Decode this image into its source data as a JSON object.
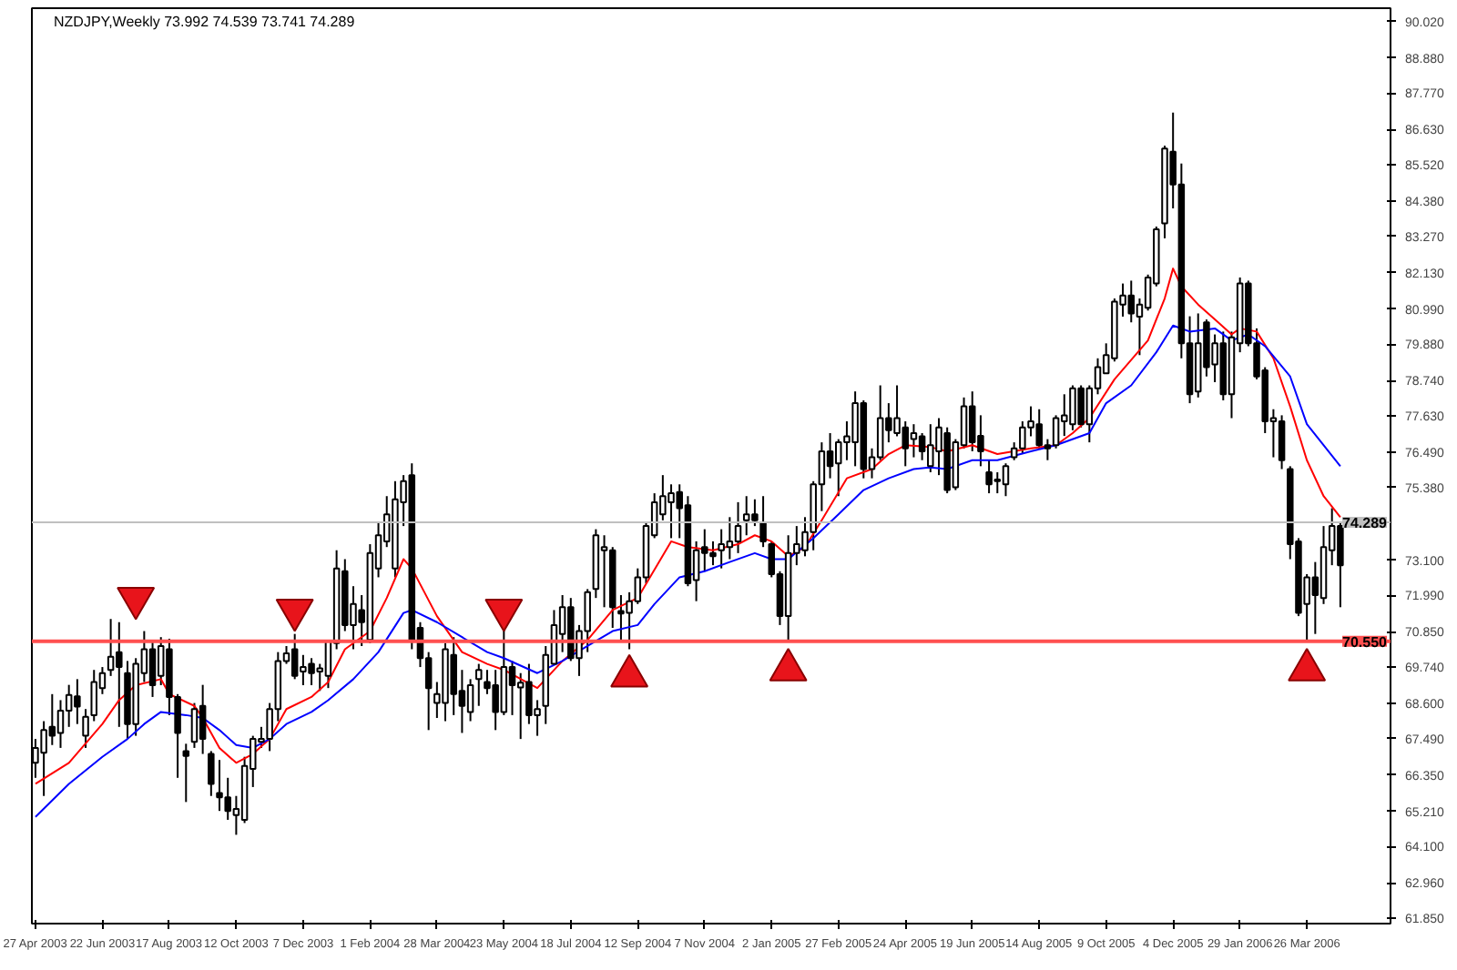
{
  "chart_data": {
    "type": "candlestick",
    "title": "NZDJPY,Weekly  73.992 74.539 73.741 74.289",
    "x": [
      "2003-04-27",
      "2003-05-04",
      "2003-05-11",
      "2003-05-18",
      "2003-05-25",
      "2003-06-01",
      "2003-06-08",
      "2003-06-15",
      "2003-06-22",
      "2003-06-29",
      "2003-07-06",
      "2003-07-13",
      "2003-07-20",
      "2003-07-27",
      "2003-08-03",
      "2003-08-10",
      "2003-08-17",
      "2003-08-24",
      "2003-08-31",
      "2003-09-07",
      "2003-09-14",
      "2003-09-21",
      "2003-09-28",
      "2003-10-05",
      "2003-10-12",
      "2003-10-19",
      "2003-10-26",
      "2003-11-02",
      "2003-11-09",
      "2003-11-16",
      "2003-11-23",
      "2003-11-30",
      "2003-12-07",
      "2003-12-14",
      "2003-12-21",
      "2003-12-28",
      "2004-01-04",
      "2004-01-11",
      "2004-01-18",
      "2004-01-25",
      "2004-02-01",
      "2004-02-08",
      "2004-02-15",
      "2004-02-22",
      "2004-02-29",
      "2004-03-07",
      "2004-03-14",
      "2004-03-21",
      "2004-03-28",
      "2004-04-04",
      "2004-04-11",
      "2004-04-18",
      "2004-04-25",
      "2004-05-02",
      "2004-05-09",
      "2004-05-16",
      "2004-05-23",
      "2004-05-30",
      "2004-06-06",
      "2004-06-13",
      "2004-06-20",
      "2004-06-27",
      "2004-07-04",
      "2004-07-11",
      "2004-07-18",
      "2004-07-25",
      "2004-08-01",
      "2004-08-08",
      "2004-08-15",
      "2004-08-22",
      "2004-08-29",
      "2004-09-05",
      "2004-09-12",
      "2004-09-19",
      "2004-09-26",
      "2004-10-03",
      "2004-10-10",
      "2004-10-17",
      "2004-10-24",
      "2004-10-31",
      "2004-11-07",
      "2004-11-14",
      "2004-11-21",
      "2004-11-28",
      "2004-12-05",
      "2004-12-12",
      "2004-12-19",
      "2004-12-26",
      "2005-01-02",
      "2005-01-09",
      "2005-01-16",
      "2005-01-23",
      "2005-01-30",
      "2005-02-06",
      "2005-02-13",
      "2005-02-20",
      "2005-02-27",
      "2005-03-06",
      "2005-03-13",
      "2005-03-20",
      "2005-03-27",
      "2005-04-03",
      "2005-04-10",
      "2005-04-17",
      "2005-04-24",
      "2005-05-01",
      "2005-05-08",
      "2005-05-15",
      "2005-05-22",
      "2005-05-29",
      "2005-06-05",
      "2005-06-12",
      "2005-06-19",
      "2005-06-26",
      "2005-07-03",
      "2005-07-10",
      "2005-07-17",
      "2005-07-24",
      "2005-07-31",
      "2005-08-07",
      "2005-08-14",
      "2005-08-21",
      "2005-08-28",
      "2005-09-04",
      "2005-09-11",
      "2005-09-18",
      "2005-09-25",
      "2005-10-02",
      "2005-10-09",
      "2005-10-16",
      "2005-10-23",
      "2005-10-30",
      "2005-11-06",
      "2005-11-13",
      "2005-11-20",
      "2005-11-27",
      "2005-12-04",
      "2005-12-11",
      "2005-12-18",
      "2005-12-25",
      "2006-01-01",
      "2006-01-08",
      "2006-01-15",
      "2006-01-22",
      "2006-01-29",
      "2006-02-05",
      "2006-02-12",
      "2006-02-19",
      "2006-02-26",
      "2006-03-05",
      "2006-03-12",
      "2006-03-19",
      "2006-03-26",
      "2006-04-02",
      "2006-04-09",
      "2006-04-16",
      "2006-04-23"
    ],
    "ohlc": [
      [
        66.73,
        67.48,
        66.26,
        67.2
      ],
      [
        67.05,
        68.04,
        65.69,
        67.76
      ],
      [
        67.86,
        68.89,
        67.29,
        67.58
      ],
      [
        67.67,
        68.7,
        67.2,
        68.37
      ],
      [
        68.37,
        69.18,
        67.86,
        68.86
      ],
      [
        68.82,
        69.36,
        67.95,
        68.5
      ],
      [
        67.58,
        68.42,
        67.2,
        68.18
      ],
      [
        68.23,
        69.65,
        68.04,
        69.27
      ],
      [
        69.08,
        69.74,
        68.89,
        69.55
      ],
      [
        69.65,
        71.25,
        69.46,
        70.06
      ],
      [
        70.21,
        71.15,
        67.86,
        69.74
      ],
      [
        69.55,
        69.93,
        67.48,
        67.95
      ],
      [
        67.95,
        70.02,
        67.58,
        69.84
      ],
      [
        69.55,
        70.87,
        69.27,
        70.3
      ],
      [
        70.3,
        70.59,
        68.8,
        69.17
      ],
      [
        69.46,
        70.68,
        69.17,
        70.4
      ],
      [
        70.3,
        70.63,
        68.23,
        68.8
      ],
      [
        68.8,
        68.89,
        66.26,
        67.67
      ],
      [
        67.1,
        67.33,
        65.5,
        66.95
      ],
      [
        67.39,
        68.61,
        67.2,
        68.42
      ],
      [
        68.52,
        69.18,
        67.01,
        67.48
      ],
      [
        67.01,
        67.1,
        65.69,
        66.07
      ],
      [
        65.78,
        66.82,
        65.22,
        65.65
      ],
      [
        65.65,
        66.26,
        64.94,
        65.22
      ],
      [
        65.09,
        65.69,
        64.47,
        65.28
      ],
      [
        64.94,
        66.92,
        64.84,
        66.63
      ],
      [
        66.54,
        67.58,
        65.97,
        67.48
      ],
      [
        67.39,
        67.86,
        67.2,
        67.48
      ],
      [
        67.48,
        68.61,
        67.1,
        68.42
      ],
      [
        68.42,
        70.21,
        68.04,
        69.93
      ],
      [
        69.93,
        70.4,
        69.84,
        70.17
      ],
      [
        70.3,
        70.78,
        69.36,
        69.46
      ],
      [
        69.6,
        70.12,
        69.17,
        69.74
      ],
      [
        69.84,
        70.02,
        69.17,
        69.55
      ],
      [
        69.6,
        69.84,
        68.99,
        69.7
      ],
      [
        69.46,
        70.59,
        69.08,
        70.55
      ],
      [
        70.49,
        73.41,
        70.3,
        72.84
      ],
      [
        72.75,
        73.13,
        70.87,
        71.06
      ],
      [
        71.06,
        72.28,
        70.3,
        71.72
      ],
      [
        71.53,
        72.0,
        70.4,
        71.15
      ],
      [
        70.59,
        73.6,
        70.49,
        73.32
      ],
      [
        72.84,
        74.26,
        72.56,
        73.88
      ],
      [
        73.69,
        75.11,
        73.51,
        74.54
      ],
      [
        72.84,
        75.58,
        72.56,
        75.01
      ],
      [
        74.92,
        75.77,
        74.17,
        75.58
      ],
      [
        75.77,
        76.14,
        70.3,
        70.59
      ],
      [
        70.97,
        71.15,
        69.74,
        70.02
      ],
      [
        70.02,
        70.21,
        67.76,
        69.08
      ],
      [
        68.61,
        69.27,
        68.14,
        68.89
      ],
      [
        68.61,
        70.49,
        68.04,
        70.3
      ],
      [
        70.12,
        70.68,
        68.23,
        68.89
      ],
      [
        68.99,
        69.65,
        67.67,
        68.52
      ],
      [
        68.33,
        69.36,
        68.04,
        69.17
      ],
      [
        69.36,
        69.84,
        68.52,
        69.65
      ],
      [
        69.27,
        69.65,
        68.89,
        69.08
      ],
      [
        69.17,
        69.65,
        67.76,
        68.33
      ],
      [
        68.33,
        70.97,
        68.23,
        69.74
      ],
      [
        69.74,
        69.93,
        68.23,
        69.17
      ],
      [
        69.1,
        69.55,
        67.48,
        69.25
      ],
      [
        69.27,
        69.84,
        67.95,
        68.23
      ],
      [
        68.23,
        68.7,
        67.58,
        68.42
      ],
      [
        68.52,
        70.4,
        67.95,
        70.12
      ],
      [
        69.84,
        71.53,
        69.84,
        71.06
      ],
      [
        70.78,
        72.0,
        70.21,
        71.62
      ],
      [
        71.62,
        71.91,
        69.93,
        70.02
      ],
      [
        70.02,
        71.06,
        69.46,
        70.87
      ],
      [
        70.87,
        72.19,
        70.21,
        72.09
      ],
      [
        72.19,
        74.07,
        71.91,
        73.88
      ],
      [
        73.41,
        73.88,
        71.62,
        73.51
      ],
      [
        73.41,
        73.51,
        70.97,
        71.62
      ],
      [
        71.5,
        72.0,
        70.59,
        71.42
      ],
      [
        71.44,
        72.09,
        70.3,
        71.81
      ],
      [
        71.81,
        72.84,
        71.72,
        72.56
      ],
      [
        72.56,
        74.26,
        72.37,
        74.17
      ],
      [
        73.88,
        75.2,
        73.79,
        74.92
      ],
      [
        74.54,
        75.77,
        74.35,
        75.11
      ],
      [
        74.92,
        75.48,
        73.79,
        75.2
      ],
      [
        75.24,
        75.48,
        73.79,
        74.73
      ],
      [
        74.82,
        75.11,
        72.28,
        72.37
      ],
      [
        72.47,
        73.69,
        71.81,
        73.41
      ],
      [
        73.51,
        74.07,
        72.75,
        73.32
      ],
      [
        73.32,
        73.69,
        72.94,
        73.22
      ],
      [
        73.41,
        74.07,
        72.84,
        73.6
      ],
      [
        73.51,
        74.45,
        73.13,
        73.69
      ],
      [
        73.69,
        74.92,
        73.32,
        74.17
      ],
      [
        74.35,
        75.11,
        73.88,
        74.54
      ],
      [
        74.54,
        75.01,
        74.17,
        74.35
      ],
      [
        74.26,
        75.11,
        73.51,
        73.69
      ],
      [
        73.6,
        73.69,
        72.56,
        72.66
      ],
      [
        72.66,
        72.75,
        71.06,
        71.34
      ],
      [
        71.34,
        73.88,
        70.59,
        73.32
      ],
      [
        73.32,
        74.17,
        72.94,
        73.6
      ],
      [
        73.41,
        74.45,
        73.22,
        73.98
      ],
      [
        73.98,
        75.58,
        73.41,
        75.48
      ],
      [
        75.48,
        76.8,
        74.64,
        76.52
      ],
      [
        76.52,
        77.09,
        75.67,
        76.05
      ],
      [
        76.14,
        76.9,
        75.11,
        76.8
      ],
      [
        76.8,
        77.46,
        76.24,
        76.99
      ],
      [
        76.8,
        78.4,
        76.05,
        78.03
      ],
      [
        78.03,
        78.12,
        75.67,
        75.96
      ],
      [
        75.96,
        76.61,
        75.67,
        76.33
      ],
      [
        76.33,
        78.59,
        76.24,
        77.56
      ],
      [
        77.56,
        78.03,
        76.8,
        77.18
      ],
      [
        77.09,
        78.59,
        76.99,
        77.56
      ],
      [
        77.27,
        77.46,
        76.05,
        76.61
      ],
      [
        76.9,
        77.37,
        76.33,
        77.09
      ],
      [
        76.99,
        77.09,
        76.24,
        76.52
      ],
      [
        76.05,
        77.37,
        75.86,
        76.71
      ],
      [
        76.52,
        77.56,
        75.77,
        77.27
      ],
      [
        77.09,
        77.27,
        75.2,
        75.3
      ],
      [
        75.39,
        76.9,
        75.3,
        76.8
      ],
      [
        76.71,
        78.21,
        76.61,
        77.93
      ],
      [
        77.93,
        78.4,
        76.52,
        76.8
      ],
      [
        77.0,
        77.65,
        76.05,
        76.52
      ],
      [
        75.86,
        76.24,
        75.2,
        75.48
      ],
      [
        75.63,
        75.86,
        75.2,
        75.58
      ],
      [
        75.48,
        76.14,
        75.11,
        76.05
      ],
      [
        76.33,
        76.8,
        76.24,
        76.61
      ],
      [
        76.61,
        77.46,
        76.43,
        77.27
      ],
      [
        77.27,
        77.93,
        76.99,
        77.46
      ],
      [
        77.37,
        77.84,
        76.61,
        76.71
      ],
      [
        76.71,
        76.9,
        76.24,
        76.61
      ],
      [
        76.71,
        77.65,
        76.61,
        77.56
      ],
      [
        77.46,
        78.31,
        77.0,
        77.65
      ],
      [
        77.37,
        78.59,
        77.18,
        78.5
      ],
      [
        78.5,
        78.59,
        77.27,
        77.37
      ],
      [
        77.37,
        78.59,
        76.8,
        78.5
      ],
      [
        78.5,
        79.44,
        78.31,
        79.16
      ],
      [
        78.97,
        79.91,
        78.97,
        79.54
      ],
      [
        79.44,
        81.32,
        79.34,
        81.22
      ],
      [
        81.13,
        81.79,
        80.75,
        81.41
      ],
      [
        81.41,
        81.88,
        80.57,
        80.85
      ],
      [
        80.75,
        81.32,
        79.54,
        81.13
      ],
      [
        81.03,
        82.07,
        80.94,
        81.98
      ],
      [
        81.79,
        83.58,
        81.7,
        83.49
      ],
      [
        83.68,
        86.12,
        83.21,
        86.03
      ],
      [
        85.93,
        87.16,
        84.15,
        84.9
      ],
      [
        84.9,
        85.56,
        79.44,
        79.91
      ],
      [
        79.91,
        80.76,
        78.03,
        78.31
      ],
      [
        78.4,
        80.85,
        78.21,
        79.91
      ],
      [
        80.57,
        80.66,
        78.87,
        79.16
      ],
      [
        79.25,
        80.19,
        78.69,
        79.91
      ],
      [
        79.91,
        80.28,
        78.12,
        78.31
      ],
      [
        78.31,
        80.28,
        77.56,
        80.1
      ],
      [
        79.91,
        81.98,
        79.63,
        81.79
      ],
      [
        81.79,
        81.88,
        79.82,
        79.91
      ],
      [
        79.91,
        80.38,
        78.78,
        78.87
      ],
      [
        79.06,
        79.16,
        77.09,
        77.46
      ],
      [
        77.46,
        77.84,
        76.33,
        77.56
      ],
      [
        77.46,
        77.65,
        75.96,
        76.24
      ],
      [
        75.96,
        76.05,
        73.13,
        73.6
      ],
      [
        73.69,
        73.79,
        71.34,
        71.44
      ],
      [
        71.72,
        72.66,
        70.55,
        72.56
      ],
      [
        72.56,
        73.04,
        70.78,
        72.0
      ],
      [
        71.91,
        74.17,
        71.72,
        73.51
      ],
      [
        73.41,
        74.73,
        72.94,
        74.17
      ],
      [
        74.17,
        74.26,
        71.62,
        72.94
      ]
    ],
    "series": [
      {
        "type": "line",
        "color": "#ff0000",
        "x": [
          "2003-04-27",
          "2003-05-25",
          "2003-06-22",
          "2003-07-06",
          "2003-07-20",
          "2003-08-10",
          "2003-08-17",
          "2003-09-07",
          "2003-09-14",
          "2003-09-28",
          "2003-10-12",
          "2003-10-26",
          "2003-11-09",
          "2003-11-23",
          "2003-12-14",
          "2003-12-28",
          "2004-01-11",
          "2004-02-01",
          "2004-02-15",
          "2004-02-29",
          "2004-03-07",
          "2004-03-28",
          "2004-04-18",
          "2004-05-09",
          "2004-05-23",
          "2004-06-20",
          "2004-07-11",
          "2004-08-01",
          "2004-08-22",
          "2004-09-12",
          "2004-10-10",
          "2004-10-24",
          "2004-11-14",
          "2004-12-05",
          "2004-12-19",
          "2005-01-02",
          "2005-01-16",
          "2005-01-30",
          "2005-02-13",
          "2005-03-06",
          "2005-03-27",
          "2005-04-10",
          "2005-04-24",
          "2005-05-15",
          "2005-05-29",
          "2005-06-19",
          "2005-07-10",
          "2005-08-07",
          "2005-08-28",
          "2005-09-11",
          "2005-09-25",
          "2005-10-16",
          "2005-11-13",
          "2005-11-27",
          "2005-12-04",
          "2005-12-11",
          "2005-12-25",
          "2006-01-08",
          "2006-01-22",
          "2006-01-29",
          "2006-02-12",
          "2006-02-26",
          "2006-03-12",
          "2006-03-26",
          "2006-04-09",
          "2006-04-23"
        ],
        "values": [
          66.07,
          66.73,
          67.95,
          68.7,
          69.17,
          69.36,
          68.89,
          68.52,
          68.14,
          67.2,
          66.73,
          67.01,
          67.48,
          68.42,
          68.8,
          69.27,
          70.3,
          70.87,
          71.91,
          73.13,
          72.84,
          71.34,
          70.21,
          69.84,
          69.65,
          69.08,
          69.93,
          70.59,
          71.53,
          71.91,
          73.69,
          73.51,
          73.41,
          73.6,
          73.88,
          73.69,
          73.22,
          73.51,
          74.35,
          75.67,
          75.96,
          76.43,
          76.71,
          76.65,
          76.52,
          76.71,
          76.43,
          76.61,
          76.71,
          77.09,
          77.56,
          78.78,
          80.0,
          81.32,
          82.26,
          81.7,
          81.13,
          80.66,
          80.19,
          80.38,
          80.28,
          79.44,
          77.93,
          76.24,
          75.11,
          74.45
        ]
      },
      {
        "type": "line",
        "color": "#0000ff",
        "x": [
          "2003-04-27",
          "2003-05-25",
          "2003-06-22",
          "2003-07-13",
          "2003-07-27",
          "2003-08-10",
          "2003-08-31",
          "2003-09-14",
          "2003-09-28",
          "2003-10-12",
          "2003-10-26",
          "2003-11-09",
          "2003-11-23",
          "2003-12-14",
          "2003-12-28",
          "2004-01-18",
          "2004-02-08",
          "2004-02-29",
          "2004-03-07",
          "2004-03-28",
          "2004-04-18",
          "2004-05-09",
          "2004-05-23",
          "2004-06-20",
          "2004-07-11",
          "2004-08-01",
          "2004-08-22",
          "2004-09-12",
          "2004-09-26",
          "2004-10-17",
          "2004-11-07",
          "2004-11-28",
          "2004-12-19",
          "2005-01-02",
          "2005-01-16",
          "2005-02-06",
          "2005-02-27",
          "2005-03-20",
          "2005-04-10",
          "2005-05-01",
          "2005-05-15",
          "2005-05-29",
          "2005-06-19",
          "2005-07-10",
          "2005-08-07",
          "2005-08-28",
          "2005-09-25",
          "2005-10-09",
          "2005-10-30",
          "2005-11-20",
          "2005-12-04",
          "2005-12-18",
          "2006-01-08",
          "2006-01-22",
          "2006-02-05",
          "2006-02-19",
          "2006-03-12",
          "2006-03-26",
          "2006-04-23"
        ],
        "values": [
          65.03,
          66.07,
          66.92,
          67.48,
          67.95,
          68.33,
          68.23,
          68.14,
          67.76,
          67.29,
          67.2,
          67.48,
          67.95,
          68.33,
          68.7,
          69.36,
          70.21,
          71.44,
          71.53,
          71.15,
          70.68,
          70.21,
          70.02,
          69.55,
          69.93,
          70.4,
          70.87,
          71.06,
          71.72,
          72.56,
          72.75,
          73.04,
          73.32,
          73.13,
          73.13,
          73.79,
          74.54,
          75.3,
          75.67,
          75.96,
          76.01,
          75.96,
          76.24,
          76.24,
          76.52,
          76.71,
          77.09,
          78.03,
          78.59,
          79.63,
          80.47,
          80.28,
          80.38,
          80.0,
          80.19,
          79.82,
          78.87,
          77.37,
          76.05
        ]
      },
      {
        "type": "scatter",
        "color": "#e8141b",
        "marker": "triangle",
        "x": [
          "2003-07-20",
          "2003-11-30",
          "2004-05-23"
        ],
        "values": [
          71.9,
          71.53,
          71.53
        ]
      },
      {
        "type": "scatter",
        "color": "#e8141b",
        "marker": "triangle",
        "x": [
          "2004-09-05",
          "2005-01-16",
          "2006-03-26"
        ],
        "values": [
          69.46,
          69.65,
          69.65
        ]
      }
    ],
    "ref_lines": [
      {
        "axis": "y",
        "value": 74.289,
        "label": "74.289",
        "color": "#c0c0c0"
      },
      {
        "axis": "y",
        "value": 70.55,
        "label": "70.550",
        "color": "#ff5050"
      }
    ],
    "xlim": [
      "2003-04-24",
      "2006-06-04"
    ],
    "xticks": [
      {
        "value": "2003-04-27",
        "label": "27 Apr 2003"
      },
      {
        "value": "2003-06-22",
        "label": "22 Jun 2003"
      },
      {
        "value": "2003-08-17",
        "label": "17 Aug 2003"
      },
      {
        "value": "2003-10-12",
        "label": "12 Oct 2003"
      },
      {
        "value": "2003-12-07",
        "label": "7 Dec 2003"
      },
      {
        "value": "2004-02-01",
        "label": "1 Feb 2004"
      },
      {
        "value": "2004-03-28",
        "label": "28 Mar 2004"
      },
      {
        "value": "2004-05-23",
        "label": "23 May 2004"
      },
      {
        "value": "2004-07-18",
        "label": "18 Jul 2004"
      },
      {
        "value": "2004-09-12",
        "label": "12 Sep 2004"
      },
      {
        "value": "2004-11-07",
        "label": "7 Nov 2004"
      },
      {
        "value": "2005-01-02",
        "label": "2 Jan 2005"
      },
      {
        "value": "2005-02-27",
        "label": "27 Feb 2005"
      },
      {
        "value": "2005-04-24",
        "label": "24 Apr 2005"
      },
      {
        "value": "2005-06-19",
        "label": "19 Jun 2005"
      },
      {
        "value": "2005-08-14",
        "label": "14 Aug 2005"
      },
      {
        "value": "2005-10-09",
        "label": "9 Oct 2005"
      },
      {
        "value": "2005-12-04",
        "label": "4 Dec 2005"
      },
      {
        "value": "2006-01-29",
        "label": "29 Jan 2006"
      },
      {
        "value": "2006-03-26",
        "label": "26 Mar 2006"
      }
    ],
    "ylim": [
      61.68,
      90.44
    ],
    "yticks": [
      {
        "value": 61.85,
        "label": "61.850"
      },
      {
        "value": 62.96,
        "label": "62.960"
      },
      {
        "value": 64.1,
        "label": "64.100"
      },
      {
        "value": 65.21,
        "label": "65.210"
      },
      {
        "value": 66.35,
        "label": "66.350"
      },
      {
        "value": 67.49,
        "label": "67.490"
      },
      {
        "value": 68.6,
        "label": "68.600"
      },
      {
        "value": 69.74,
        "label": "69.740"
      },
      {
        "value": 70.85,
        "label": "70.850"
      },
      {
        "value": 71.99,
        "label": "71.990"
      },
      {
        "value": 73.1,
        "label": "73.100"
      },
      {
        "value": 75.38,
        "label": "75.380"
      },
      {
        "value": 76.49,
        "label": "76.490"
      },
      {
        "value": 77.63,
        "label": "77.630"
      },
      {
        "value": 78.74,
        "label": "78.740"
      },
      {
        "value": 79.88,
        "label": "79.880"
      },
      {
        "value": 80.99,
        "label": "80.990"
      },
      {
        "value": 82.13,
        "label": "82.130"
      },
      {
        "value": 83.27,
        "label": "83.270"
      },
      {
        "value": 84.38,
        "label": "84.380"
      },
      {
        "value": 85.52,
        "label": "85.520"
      },
      {
        "value": 86.63,
        "label": "86.630"
      },
      {
        "value": 87.77,
        "label": "87.770"
      },
      {
        "value": 88.88,
        "label": "88.880"
      },
      {
        "value": 90.02,
        "label": "90.020"
      }
    ],
    "grid": false
  }
}
